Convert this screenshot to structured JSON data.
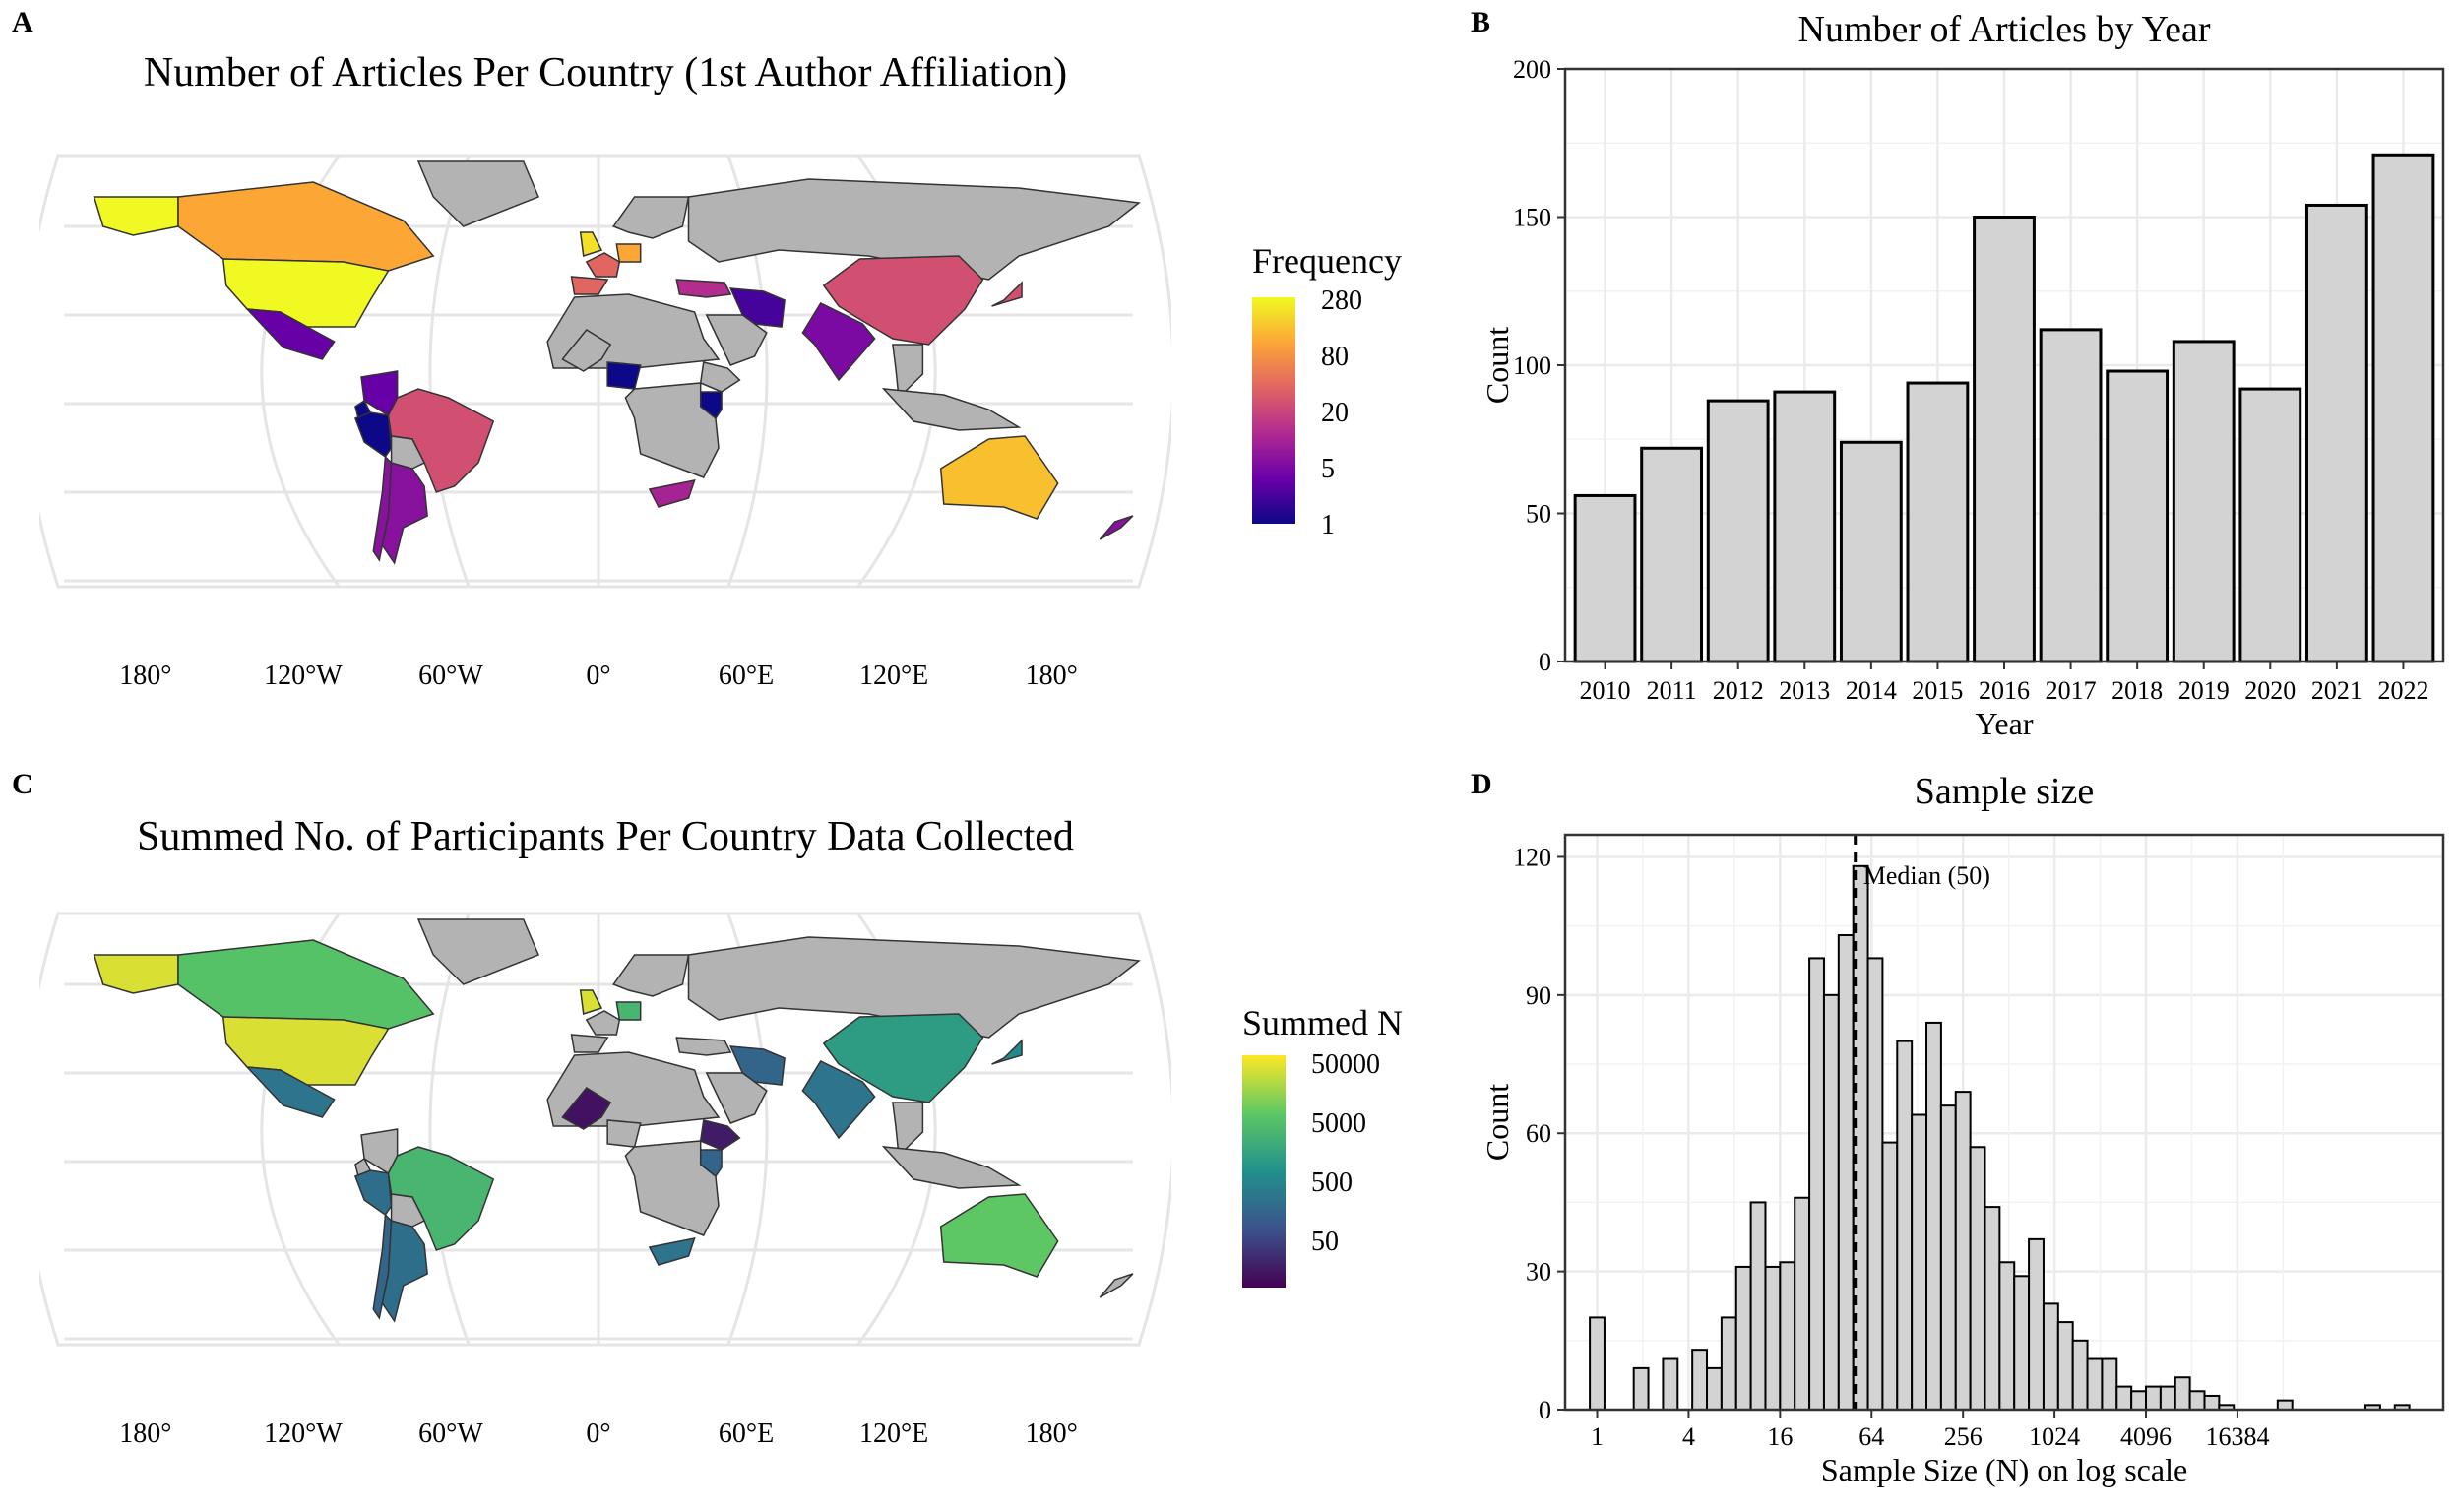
{
  "panels": {
    "a": {
      "letter": "A",
      "title": "Number of Articles Per Country (1st Author Affiliation)"
    },
    "b": {
      "letter": "B"
    },
    "c": {
      "letter": "C",
      "title": "Summed No. of Participants Per Country Data Collected"
    },
    "d": {
      "letter": "D"
    }
  },
  "map_axis": {
    "lon_labels": [
      "180°",
      "120°W",
      "60°W",
      "0°",
      "60°E",
      "120°E",
      "180°"
    ]
  },
  "colors": {
    "no_data": "#b3b3b3",
    "grid": "#e5e5e5",
    "bar_fill": "#d3d3d3",
    "plasma": [
      "#0d0887",
      "#6a00a8",
      "#b12a90",
      "#e16462",
      "#fca636",
      "#f0f921"
    ],
    "viridis": [
      "#440154",
      "#3b528b",
      "#21908c",
      "#5dc863",
      "#fde725"
    ]
  },
  "chart_data": [
    {
      "type": "heatmap",
      "map": "world-choropleth",
      "title": "Number of Articles Per Country (1st Author Affiliation)",
      "legend": {
        "title": "Frequency",
        "scale": "log",
        "ticks": [
          "280",
          "80",
          "20",
          "5",
          "1"
        ],
        "palette": "plasma",
        "placement": "right"
      },
      "values": {
        "United States": 280,
        "Canada": 90,
        "Alaska": 280,
        "Greenland": 0,
        "Brazil": 20,
        "Mexico": 3,
        "Peru": 1,
        "Argentina": 5,
        "Chile": 5,
        "Colombia": 3,
        "Ecuador": 1,
        "China": 20,
        "India": 4,
        "Iran": 2,
        "Australia": 130,
        "New Zealand": 5,
        "South Africa": 8,
        "Nigeria": 1,
        "Kenya": 1,
        "Japan": 20,
        "United Kingdom": 200,
        "Germany": 90,
        "France": 30,
        "Spain": 30,
        "Turkey": 10,
        "Russia": 0
      }
    },
    {
      "type": "bar",
      "title": "Number of Articles by Year",
      "categories": [
        "2010",
        "2011",
        "2012",
        "2013",
        "2014",
        "2015",
        "2016",
        "2017",
        "2018",
        "2019",
        "2020",
        "2021",
        "2022"
      ],
      "values": [
        56,
        72,
        88,
        91,
        74,
        94,
        150,
        112,
        98,
        108,
        92,
        154,
        171
      ],
      "xlabel": "Year",
      "ylabel": "Count",
      "ylim": [
        0,
        200
      ],
      "yticks": [
        "0",
        "50",
        "100",
        "150",
        "200"
      ],
      "grid": true
    },
    {
      "type": "heatmap",
      "map": "world-choropleth",
      "title": "Summed No. of Participants Per Country Data Collected",
      "legend": {
        "title": "Summed N",
        "scale": "log",
        "ticks": [
          "50000",
          "5000",
          "500",
          "50"
        ],
        "palette": "viridis",
        "placement": "right"
      },
      "values": {
        "United States": 50000,
        "Alaska": 50000,
        "Canada": 8000,
        "Brazil": 5000,
        "Mexico": 500,
        "Argentina": 400,
        "Chile": 300,
        "Peru": 400,
        "China": 2000,
        "India": 500,
        "Iran": 300,
        "Australia": 10000,
        "South Africa": 500,
        "Mali": 30,
        "Ethiopia": 40,
        "Kenya": 300,
        "Japan": 1000,
        "United Kingdom": 50000,
        "Germany": 5000,
        "Russia": 0
      }
    },
    {
      "type": "bar",
      "subtype": "histogram",
      "title": "Sample size",
      "xlabel": "Sample Size (N) on log scale",
      "ylabel": "Count",
      "x_scale": "log2",
      "xticks": [
        "1",
        "4",
        "16",
        "64",
        "256",
        "1024",
        "4096",
        "16384"
      ],
      "yticks": [
        "0",
        "30",
        "60",
        "90",
        "120"
      ],
      "ylim": [
        0,
        120
      ],
      "bin_start_log2": -0.16,
      "bin_width_log2": 0.32,
      "values": [
        20,
        0,
        0,
        9,
        0,
        11,
        0,
        13,
        9,
        20,
        31,
        45,
        31,
        32,
        46,
        98,
        90,
        103,
        118,
        98,
        58,
        80,
        64,
        84,
        66,
        69,
        57,
        44,
        32,
        29,
        37,
        23,
        19,
        15,
        11,
        11,
        5,
        4,
        5,
        5,
        7,
        4,
        3,
        1,
        0,
        0,
        0,
        2,
        0,
        0,
        0,
        0,
        0,
        1,
        0,
        1
      ],
      "median": 50,
      "median_label": "Median (50)",
      "grid": true
    }
  ]
}
